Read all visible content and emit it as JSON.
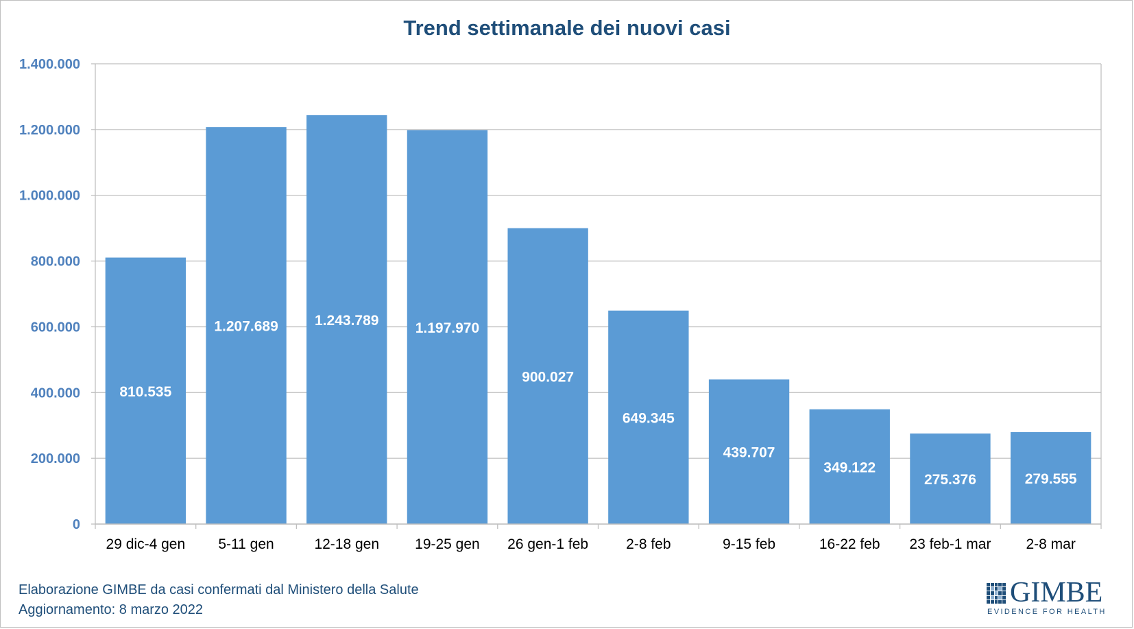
{
  "chart_data": {
    "type": "bar",
    "title": "Trend settimanale dei nuovi casi",
    "xlabel": "",
    "ylabel": "",
    "categories": [
      "29 dic-4 gen",
      "5-11 gen",
      "12-18 gen",
      "19-25 gen",
      "26 gen-1 feb",
      "2-8 feb",
      "9-15 feb",
      "16-22 feb",
      "23 feb-1 mar",
      "2-8 mar"
    ],
    "values": [
      810535,
      1207689,
      1243789,
      1197970,
      900027,
      649345,
      439707,
      349122,
      275376,
      279555
    ],
    "data_labels": [
      "810.535",
      "1.207.689",
      "1.243.789",
      "1.197.970",
      "900.027",
      "649.345",
      "439.707",
      "349.122",
      "275.376",
      "279.555"
    ],
    "ylim": [
      0,
      1400000
    ],
    "yticks": [
      0,
      200000,
      400000,
      600000,
      800000,
      1000000,
      1200000,
      1400000
    ],
    "ytick_labels": [
      "0",
      "200.000",
      "400.000",
      "600.000",
      "800.000",
      "1.000.000",
      "1.200.000",
      "1.400.000"
    ],
    "grid": true,
    "legend": "none",
    "colors": {
      "bar": "#5b9bd5",
      "title": "#1f4e79",
      "ytick": "#4f81bd",
      "grid": "#bfbfbf"
    }
  },
  "footer": {
    "line1": "Elaborazione GIMBE da casi confermati dal Ministero della Salute",
    "line2": "Aggiornamento: 8 marzo 2022"
  },
  "logo": {
    "name": "GIMBE",
    "tagline": "EVIDENCE FOR HEALTH"
  }
}
